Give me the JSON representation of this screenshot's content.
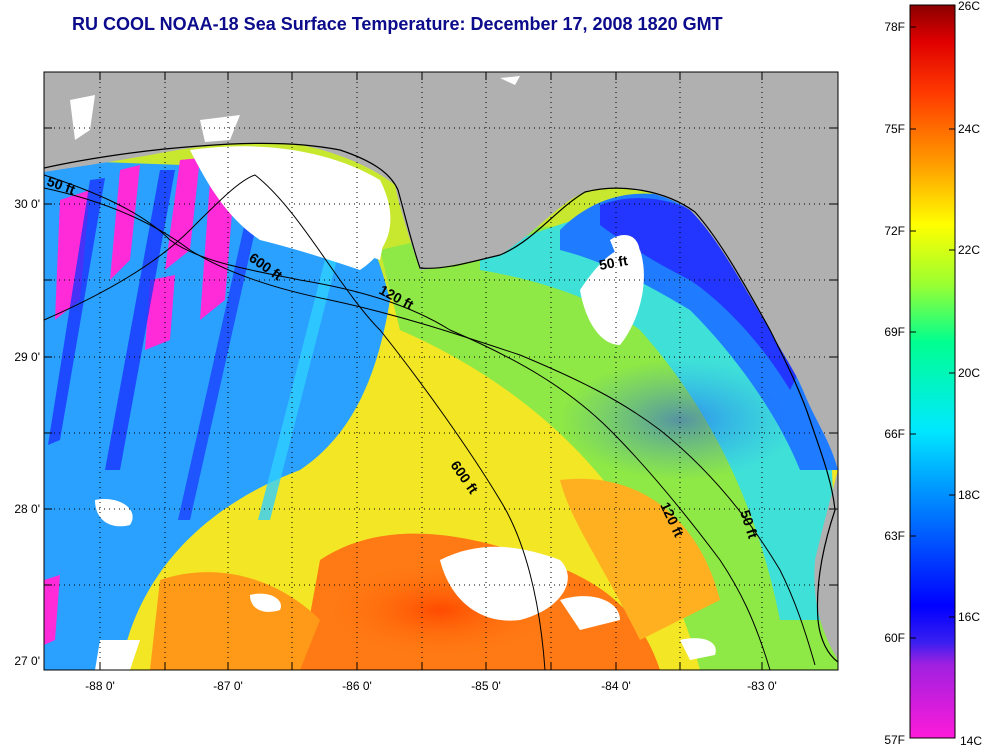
{
  "title": "RU COOL  NOAA-18  Sea Surface Temperature:  December 17, 2008 1820 GMT",
  "colors": {
    "land": "#b0b0b0",
    "cloud": "#ffffff",
    "title": "#0b0b8c"
  },
  "map": {
    "x_ticks": [
      "-88 0'",
      "-87 0'",
      "-86 0'",
      "-85 0'",
      "-84 0'",
      "-83 0'"
    ],
    "y_ticks": [
      "30 0'",
      "29 0'",
      "28 0'",
      "27 0'"
    ],
    "contour_labels": [
      {
        "id": "c50-w",
        "text": "50 ft"
      },
      {
        "id": "c600-n",
        "text": "600 ft"
      },
      {
        "id": "c120-n",
        "text": "120 ft"
      },
      {
        "id": "c50-e",
        "text": "50 ft"
      },
      {
        "id": "c600-s",
        "text": "600 ft"
      },
      {
        "id": "c120-s",
        "text": "120 ft"
      },
      {
        "id": "c50-s",
        "text": "50 ft"
      }
    ]
  },
  "colorbar": {
    "fahrenheit_labels": [
      "78F",
      "75F",
      "72F",
      "69F",
      "66F",
      "63F",
      "60F",
      "57F"
    ],
    "celsius_labels": [
      "26C",
      "24C",
      "22C",
      "20C",
      "18C",
      "16C",
      "14C"
    ]
  }
}
